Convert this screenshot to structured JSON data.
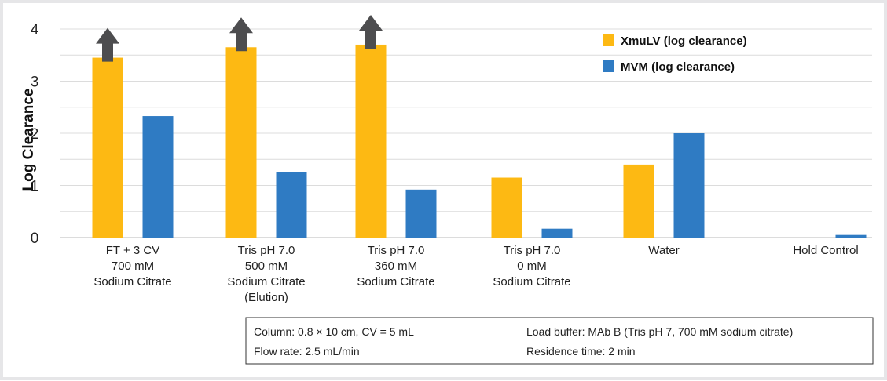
{
  "chart_data": {
    "type": "bar",
    "ylabel": "Log Clearance",
    "ylim": [
      0,
      4
    ],
    "yticks": [
      0,
      1,
      2,
      3,
      4
    ],
    "grid": true,
    "legend_position": "top-right",
    "categories": [
      [
        "FT + 3 CV",
        "700 mM",
        "Sodium Citrate"
      ],
      [
        "Tris pH 7.0",
        "500 mM",
        "Sodium Citrate",
        "(Elution)"
      ],
      [
        "Tris pH 7.0",
        "360 mM",
        "Sodium Citrate"
      ],
      [
        "Tris pH 7.0",
        "0 mM",
        "Sodium Citrate"
      ],
      [
        "Water"
      ],
      [
        "Hold Control"
      ]
    ],
    "series": [
      {
        "name": "XmuLV (log clearance)",
        "color": "#FDB913",
        "values": [
          3.45,
          3.65,
          3.7,
          1.15,
          1.4,
          0
        ],
        "greater_than_arrow": [
          true,
          true,
          true,
          false,
          false,
          false
        ]
      },
      {
        "name": "MVM (log clearance)",
        "color": "#2F7BC3",
        "values": [
          2.33,
          1.25,
          0.92,
          0.17,
          2.0,
          0.05
        ]
      }
    ],
    "arrow_color": "#4D4D4F"
  },
  "info_box": {
    "column": "Column: 0.8 × 10 cm, CV = 5 mL",
    "load_buffer": "Load buffer: MAb B (Tris pH 7, 700 mM sodium citrate)",
    "flow_rate": "Flow rate: 2.5 mL/min",
    "residence_time": "Residence time: 2 min"
  }
}
